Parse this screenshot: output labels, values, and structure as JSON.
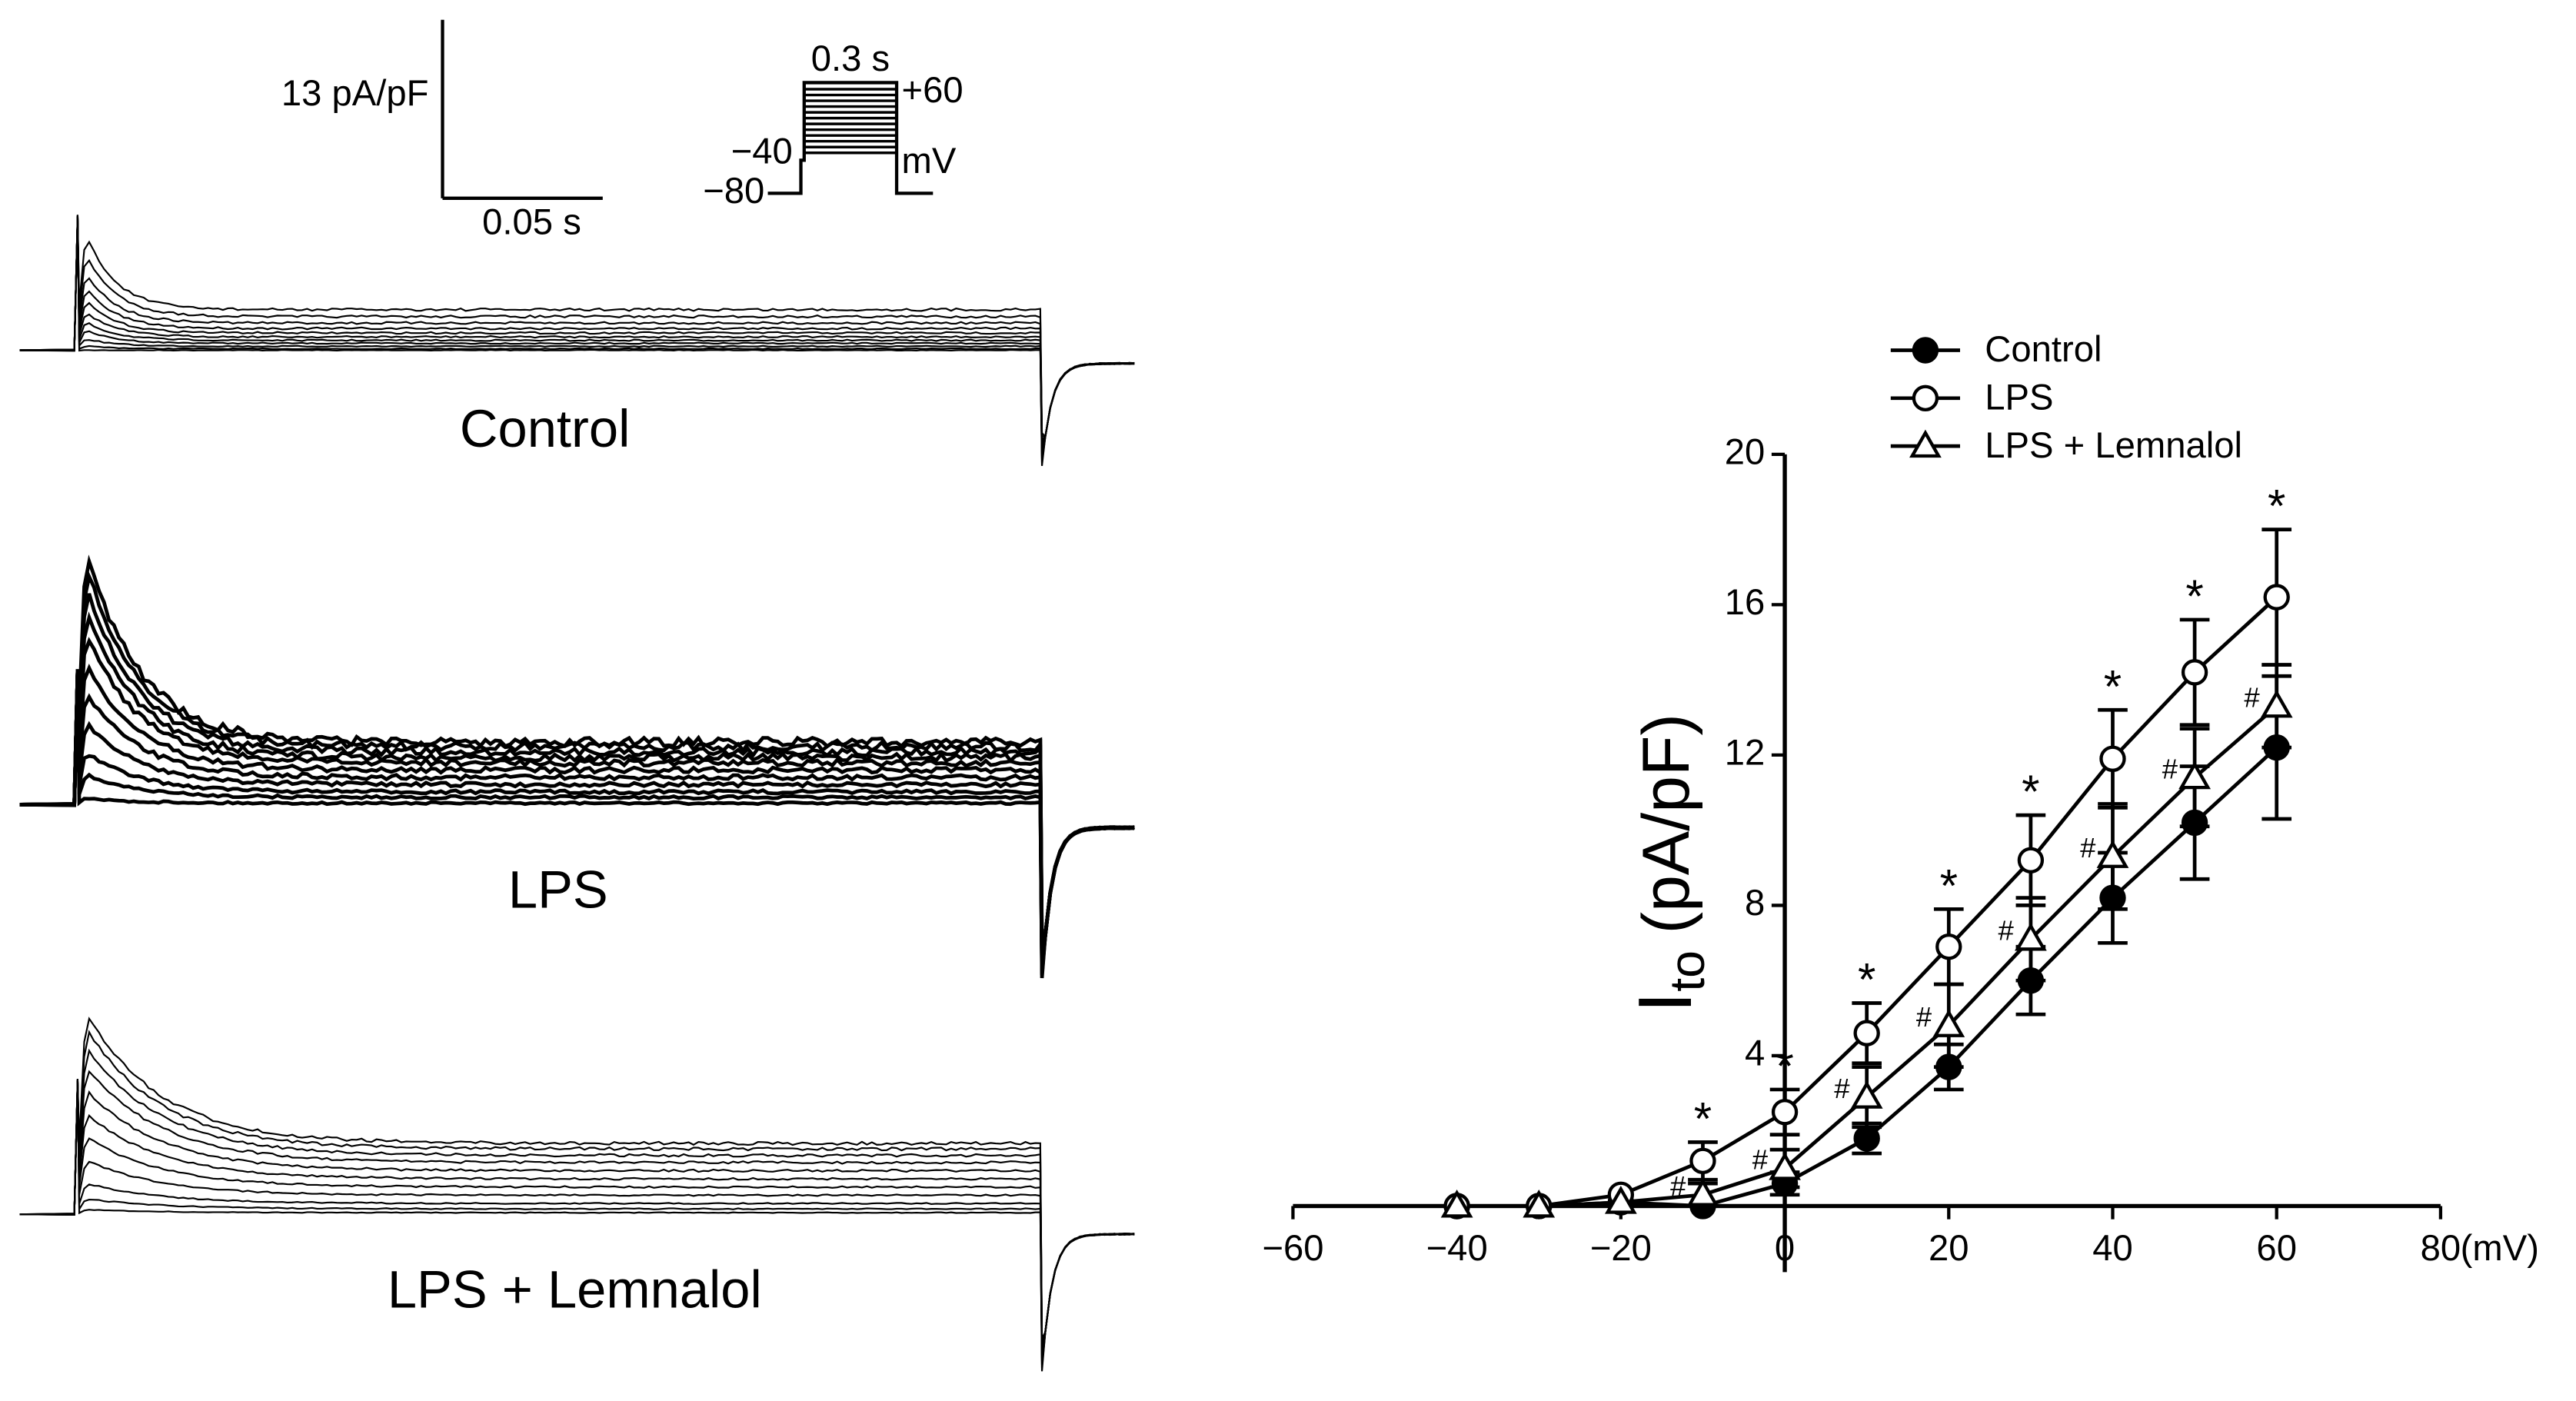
{
  "traces": {
    "current_scale": "13 pA/pF",
    "time_scale": "0.05 s",
    "protocol": {
      "duration": "0.3 s",
      "top": "+60",
      "step": "−40",
      "unit": "mV",
      "hold": "−80"
    },
    "panels": [
      "Control",
      "LPS",
      "LPS + Lemnalol"
    ]
  },
  "chart_data": {
    "type": "line",
    "y_label": {
      "main": "I",
      "sub": "to",
      "unit": "(pA/pF)"
    },
    "x_unit": "(mV)",
    "x": [
      -40,
      -30,
      -20,
      -10,
      0,
      10,
      20,
      30,
      40,
      50,
      60
    ],
    "series": [
      {
        "name": "Control",
        "color": "#000000",
        "marker": "filled-circle",
        "values": [
          0,
          0,
          0.1,
          0,
          0.6,
          1.8,
          3.7,
          6.0,
          8.2,
          10.2,
          12.2
        ],
        "errors": [
          null,
          null,
          null,
          null,
          0.3,
          0.4,
          0.6,
          0.9,
          1.2,
          1.5,
          1.9
        ],
        "annotations": [
          null,
          null,
          null,
          null,
          null,
          null,
          null,
          null,
          null,
          null,
          null
        ]
      },
      {
        "name": "LPS",
        "color": "#000000",
        "marker": "open-circle",
        "values": [
          0,
          0,
          0.3,
          1.2,
          2.5,
          4.6,
          6.9,
          9.2,
          11.9,
          14.2,
          16.2
        ],
        "errors": [
          null,
          null,
          null,
          0.5,
          0.6,
          0.8,
          1.0,
          1.2,
          1.3,
          1.4,
          1.8
        ],
        "annotations": [
          null,
          null,
          null,
          "*",
          "*",
          "*",
          "*",
          "*",
          "*",
          "*",
          "*"
        ]
      },
      {
        "name": "LPS + Lemnalol",
        "color": "#000000",
        "marker": "open-triangle",
        "values": [
          0,
          0,
          0.1,
          0.3,
          1.0,
          2.9,
          4.8,
          7.1,
          9.3,
          11.4,
          13.3
        ],
        "errors": [
          null,
          null,
          null,
          0.3,
          0.5,
          0.8,
          1.1,
          1.1,
          1.4,
          1.3,
          1.1
        ],
        "annotations": [
          null,
          null,
          null,
          "#",
          "#",
          "#",
          "#",
          "#",
          "#",
          "#",
          "#"
        ]
      }
    ],
    "xlim": [
      -60,
      80
    ],
    "xticks": [
      {
        "value": -60,
        "label": "−60"
      },
      {
        "value": -40,
        "label": "−40"
      },
      {
        "value": -20,
        "label": "−20"
      },
      0,
      20,
      40,
      60,
      80
    ],
    "ylim": [
      0,
      20
    ],
    "yticks": [
      4,
      8,
      12,
      16,
      20
    ],
    "grid": false,
    "legend": "top-left"
  }
}
